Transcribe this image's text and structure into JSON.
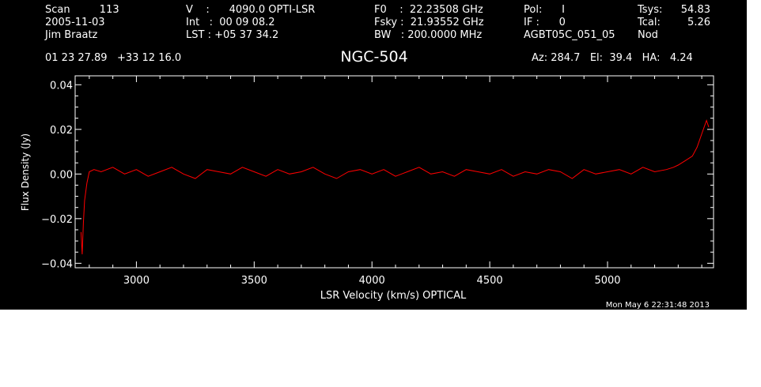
{
  "header": {
    "col1": [
      "Scan         113",
      "2005-11-03",
      "Jim Braatz"
    ],
    "col2": [
      "V    :      4090.0 OPTI-LSR",
      "Int   :  00 09 08.2",
      "LST : +05 37 34.2"
    ],
    "col3": [
      "F0    :  22.23508 GHz",
      "Fsky :  21.93552 GHz",
      "BW   : 200.0000 MHz"
    ],
    "col4": [
      "Pol:      I",
      "IF :      0",
      "AGBT05C_051_05"
    ],
    "col5": [
      "Tsys:",
      "Tcal:",
      "Nod"
    ],
    "col6": [
      "54.83",
      "5.26",
      ""
    ],
    "coords": "01 23 27.89   +33 12 16.0",
    "azelha": "Az: 284.7   El:  39.4   HA:   4.24"
  },
  "title": "NGC-504",
  "timestamp": "Mon May  6 22:31:48 2013",
  "chart_data": {
    "type": "line",
    "xlabel": "LSR Velocity (km/s) OPTICAL",
    "ylabel": "Flux Density (Jy)",
    "xlim": [
      2740,
      5450
    ],
    "ylim": [
      -0.042,
      0.044
    ],
    "xticks": [
      3000,
      3500,
      4000,
      4500,
      5000
    ],
    "xtick_labels": [
      "3000",
      "3500",
      "4000",
      "4500",
      "5000"
    ],
    "yticks": [
      -0.04,
      -0.02,
      0.0,
      0.02,
      0.04
    ],
    "ytick_labels": [
      "−0.04",
      "−0.02",
      "0.00",
      "0.02",
      "0.04"
    ],
    "series": [
      {
        "color": "#ff0000",
        "x": [
          2765,
          2770,
          2775,
          2780,
          2790,
          2800,
          2820,
          2850,
          2900,
          2950,
          3000,
          3050,
          3100,
          3150,
          3200,
          3250,
          3300,
          3350,
          3400,
          3450,
          3500,
          3550,
          3600,
          3650,
          3700,
          3750,
          3800,
          3850,
          3900,
          3950,
          4000,
          4050,
          4100,
          4150,
          4200,
          4250,
          4300,
          4350,
          4400,
          4450,
          4500,
          4550,
          4600,
          4650,
          4700,
          4750,
          4800,
          4850,
          4900,
          4950,
          5000,
          5050,
          5100,
          5150,
          5200,
          5250,
          5280,
          5300,
          5330,
          5360,
          5380,
          5400,
          5420,
          5430
        ],
        "y": [
          -0.026,
          -0.036,
          -0.022,
          -0.012,
          -0.004,
          0.001,
          0.002,
          0.001,
          0.003,
          0.0,
          0.002,
          -0.001,
          0.001,
          0.003,
          0.0,
          -0.002,
          0.002,
          0.001,
          0.0,
          0.003,
          0.001,
          -0.001,
          0.002,
          0.0,
          0.001,
          0.003,
          0.0,
          -0.002,
          0.001,
          0.002,
          0.0,
          0.002,
          -0.001,
          0.001,
          0.003,
          0.0,
          0.001,
          -0.001,
          0.002,
          0.001,
          0.0,
          0.002,
          -0.001,
          0.001,
          0.0,
          0.002,
          0.001,
          -0.002,
          0.002,
          0.0,
          0.001,
          0.002,
          0.0,
          0.003,
          0.001,
          0.002,
          0.003,
          0.004,
          0.006,
          0.008,
          0.012,
          0.018,
          0.024,
          0.021
        ]
      }
    ]
  }
}
